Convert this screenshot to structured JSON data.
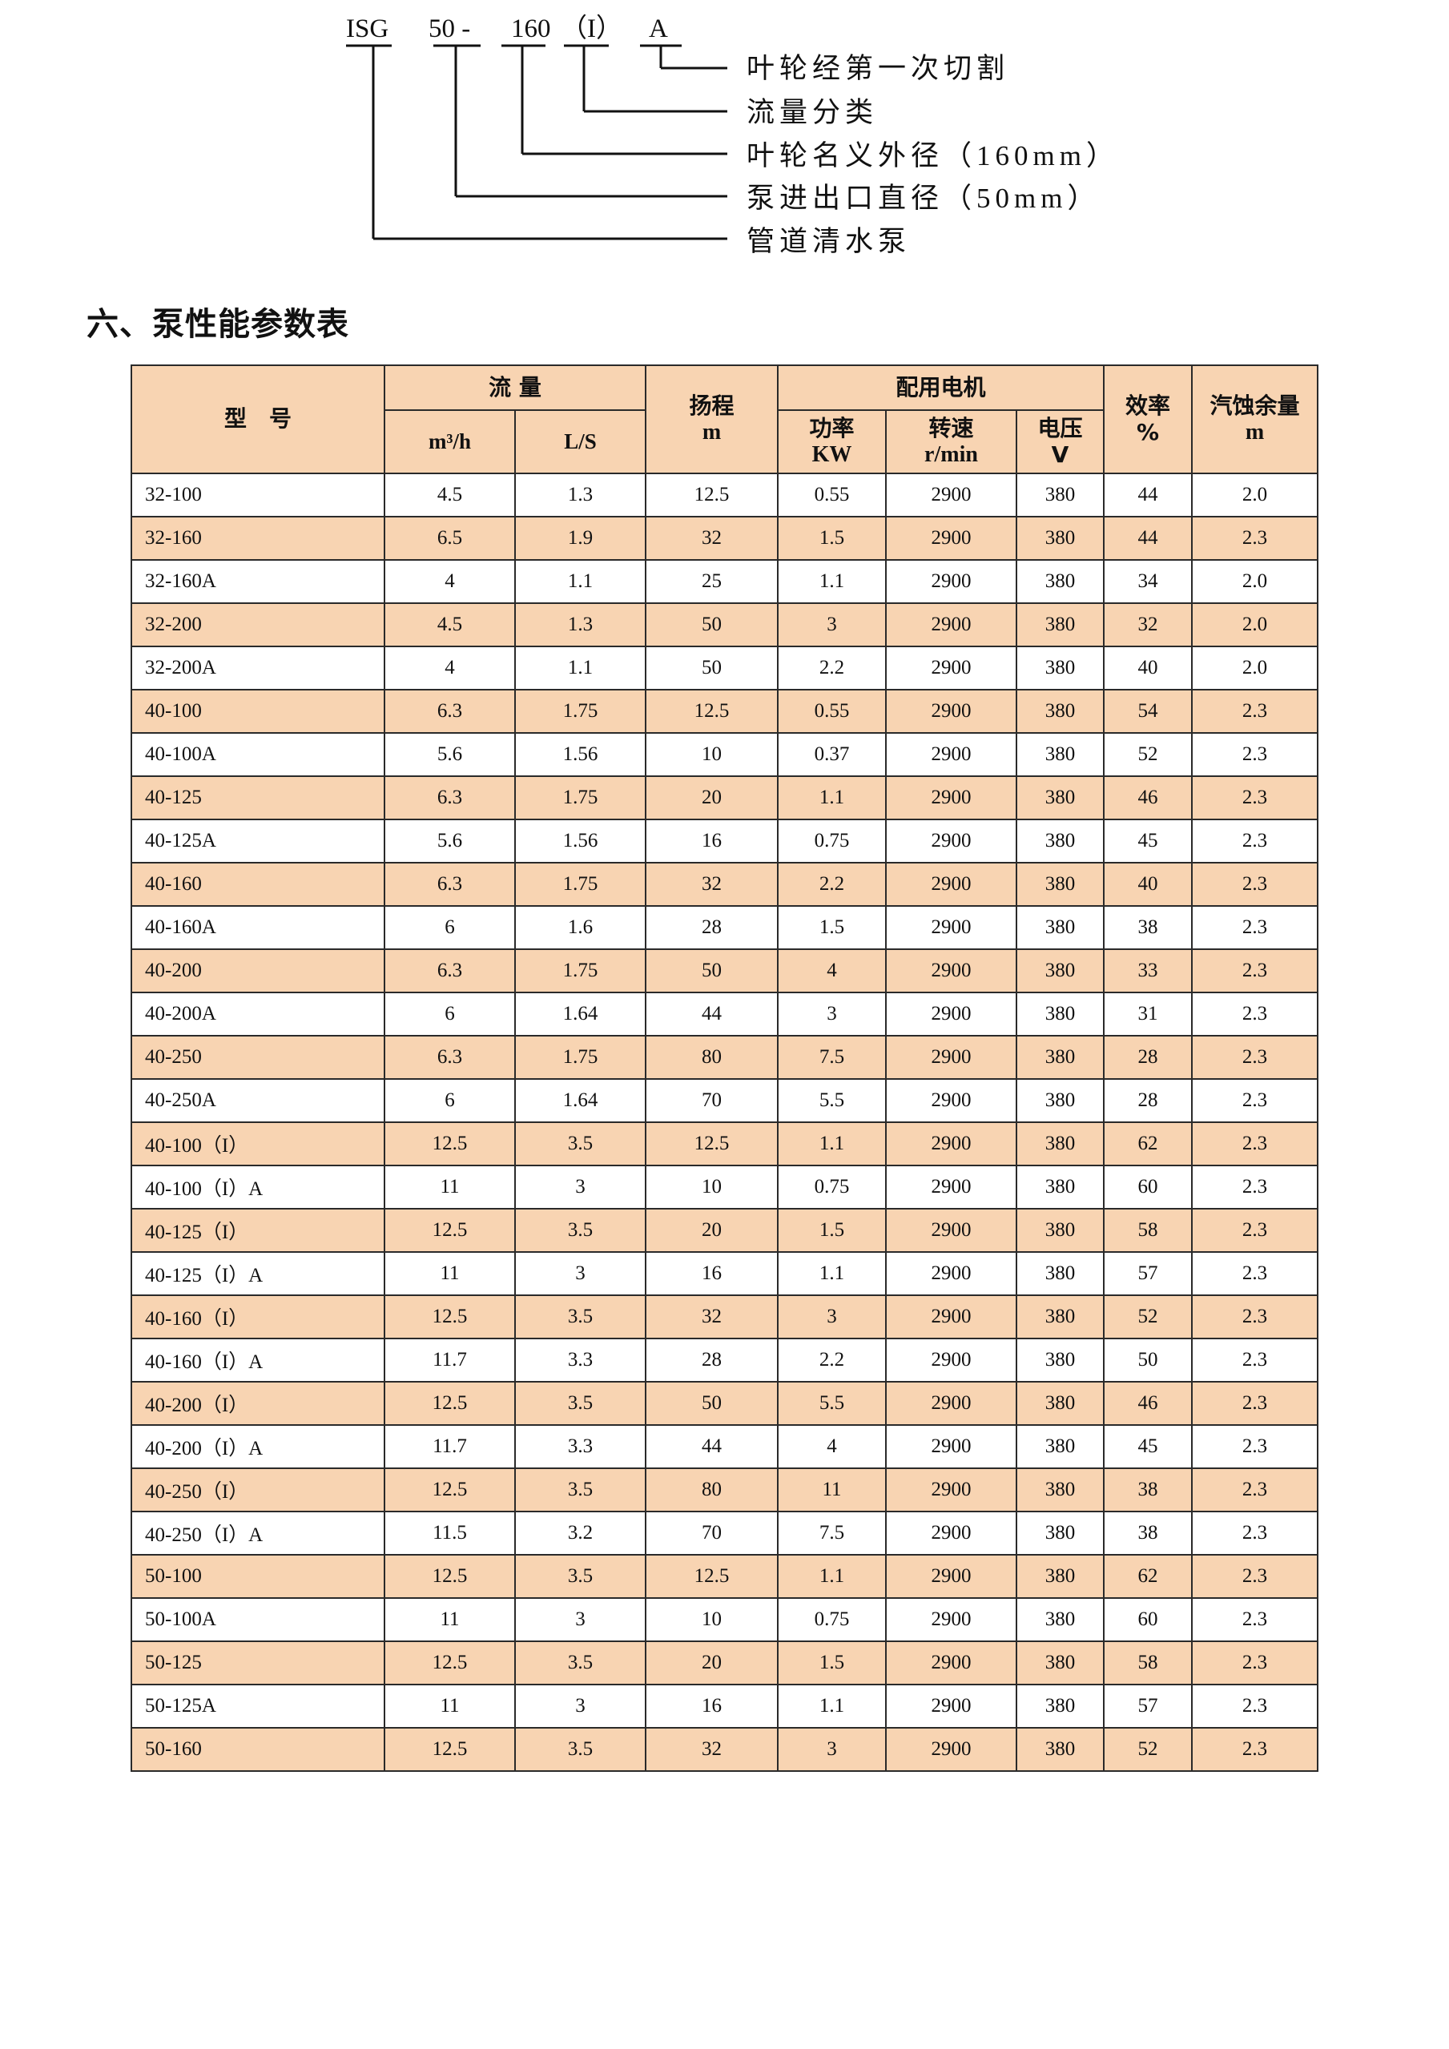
{
  "model_code": {
    "parts": [
      "ISG",
      "50 -",
      "160",
      "（I）",
      "A"
    ],
    "legend": [
      "叶轮经第一次切割",
      "流量分类",
      "叶轮名义外径（160mm）",
      "泵进出口直径（50mm）",
      "管道清水泵"
    ]
  },
  "section_title": "六、泵性能参数表",
  "table": {
    "headers": {
      "model": "型　号",
      "flow": "流 量",
      "flow_m3h": "m³/h",
      "flow_ls": "L/S",
      "head": "扬程",
      "head_unit": "m",
      "motor": "配用电机",
      "power": "功率",
      "power_unit": "KW",
      "speed": "转速",
      "speed_unit": "r/min",
      "voltage": "电压",
      "voltage_unit": "V",
      "efficiency": "效率",
      "efficiency_unit": "%",
      "npsh": "汽蚀余量",
      "npsh_unit": "m"
    },
    "rows": [
      [
        "32-100",
        "4.5",
        "1.3",
        "12.5",
        "0.55",
        "2900",
        "380",
        "44",
        "2.0"
      ],
      [
        "32-160",
        "6.5",
        "1.9",
        "32",
        "1.5",
        "2900",
        "380",
        "44",
        "2.3"
      ],
      [
        "32-160A",
        "4",
        "1.1",
        "25",
        "1.1",
        "2900",
        "380",
        "34",
        "2.0"
      ],
      [
        "32-200",
        "4.5",
        "1.3",
        "50",
        "3",
        "2900",
        "380",
        "32",
        "2.0"
      ],
      [
        "32-200A",
        "4",
        "1.1",
        "50",
        "2.2",
        "2900",
        "380",
        "40",
        "2.0"
      ],
      [
        "40-100",
        "6.3",
        "1.75",
        "12.5",
        "0.55",
        "2900",
        "380",
        "54",
        "2.3"
      ],
      [
        "40-100A",
        "5.6",
        "1.56",
        "10",
        "0.37",
        "2900",
        "380",
        "52",
        "2.3"
      ],
      [
        "40-125",
        "6.3",
        "1.75",
        "20",
        "1.1",
        "2900",
        "380",
        "46",
        "2.3"
      ],
      [
        "40-125A",
        "5.6",
        "1.56",
        "16",
        "0.75",
        "2900",
        "380",
        "45",
        "2.3"
      ],
      [
        "40-160",
        "6.3",
        "1.75",
        "32",
        "2.2",
        "2900",
        "380",
        "40",
        "2.3"
      ],
      [
        "40-160A",
        "6",
        "1.6",
        "28",
        "1.5",
        "2900",
        "380",
        "38",
        "2.3"
      ],
      [
        "40-200",
        "6.3",
        "1.75",
        "50",
        "4",
        "2900",
        "380",
        "33",
        "2.3"
      ],
      [
        "40-200A",
        "6",
        "1.64",
        "44",
        "3",
        "2900",
        "380",
        "31",
        "2.3"
      ],
      [
        "40-250",
        "6.3",
        "1.75",
        "80",
        "7.5",
        "2900",
        "380",
        "28",
        "2.3"
      ],
      [
        "40-250A",
        "6",
        "1.64",
        "70",
        "5.5",
        "2900",
        "380",
        "28",
        "2.3"
      ],
      [
        "40-100（I）",
        "12.5",
        "3.5",
        "12.5",
        "1.1",
        "2900",
        "380",
        "62",
        "2.3"
      ],
      [
        "40-100（I）A",
        "11",
        "3",
        "10",
        "0.75",
        "2900",
        "380",
        "60",
        "2.3"
      ],
      [
        "40-125（I）",
        "12.5",
        "3.5",
        "20",
        "1.5",
        "2900",
        "380",
        "58",
        "2.3"
      ],
      [
        "40-125（I）A",
        "11",
        "3",
        "16",
        "1.1",
        "2900",
        "380",
        "57",
        "2.3"
      ],
      [
        "40-160（I）",
        "12.5",
        "3.5",
        "32",
        "3",
        "2900",
        "380",
        "52",
        "2.3"
      ],
      [
        "40-160（I）A",
        "11.7",
        "3.3",
        "28",
        "2.2",
        "2900",
        "380",
        "50",
        "2.3"
      ],
      [
        "40-200（I）",
        "12.5",
        "3.5",
        "50",
        "5.5",
        "2900",
        "380",
        "46",
        "2.3"
      ],
      [
        "40-200（I）A",
        "11.7",
        "3.3",
        "44",
        "4",
        "2900",
        "380",
        "45",
        "2.3"
      ],
      [
        "40-250（I）",
        "12.5",
        "3.5",
        "80",
        "11",
        "2900",
        "380",
        "38",
        "2.3"
      ],
      [
        "40-250（I）A",
        "11.5",
        "3.2",
        "70",
        "7.5",
        "2900",
        "380",
        "38",
        "2.3"
      ],
      [
        "50-100",
        "12.5",
        "3.5",
        "12.5",
        "1.1",
        "2900",
        "380",
        "62",
        "2.3"
      ],
      [
        "50-100A",
        "11",
        "3",
        "10",
        "0.75",
        "2900",
        "380",
        "60",
        "2.3"
      ],
      [
        "50-125",
        "12.5",
        "3.5",
        "20",
        "1.5",
        "2900",
        "380",
        "58",
        "2.3"
      ],
      [
        "50-125A",
        "11",
        "3",
        "16",
        "1.1",
        "2900",
        "380",
        "57",
        "2.3"
      ],
      [
        "50-160",
        "12.5",
        "3.5",
        "32",
        "3",
        "2900",
        "380",
        "52",
        "2.3"
      ]
    ]
  },
  "colors": {
    "header_fill": "#f8d4b2",
    "alt_row_fill": "#f8d4b2",
    "border": "#2a2a2a"
  }
}
